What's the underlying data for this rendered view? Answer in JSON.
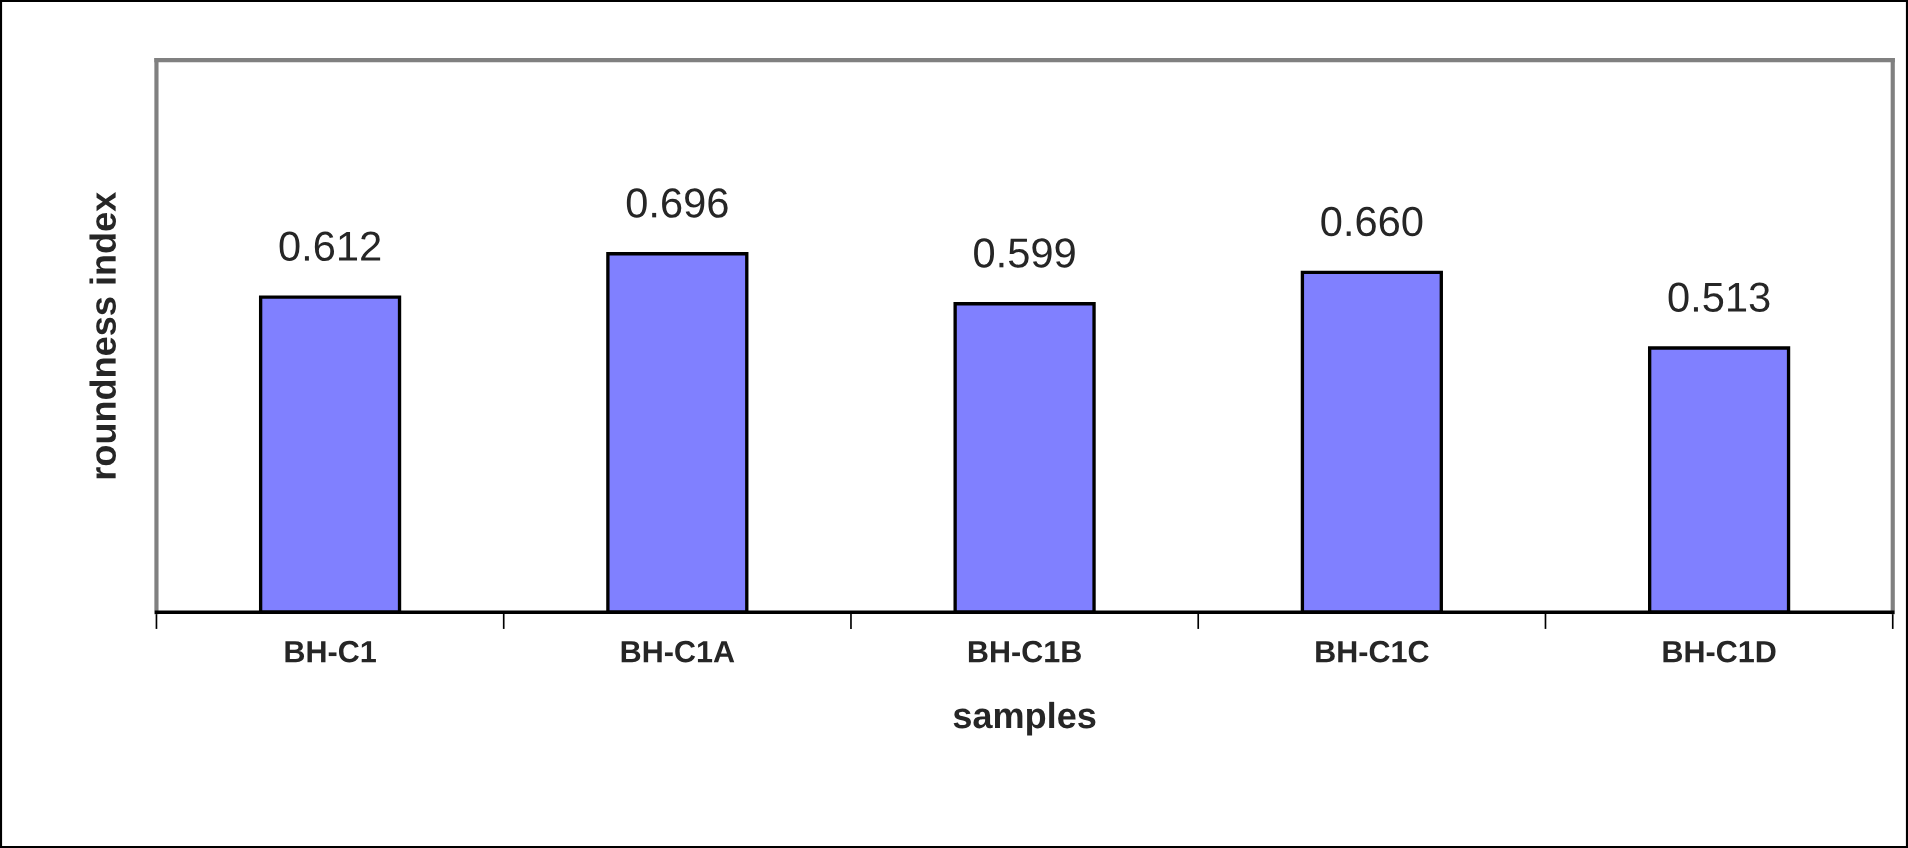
{
  "chart_data": {
    "type": "bar",
    "xlabel": "samples",
    "ylabel": "roundness index",
    "categories": [
      "BH-C1",
      "BH-C1A",
      "BH-C1B",
      "BH-C1C",
      "BH-C1D"
    ],
    "values": [
      0.612,
      0.696,
      0.599,
      0.66,
      0.513
    ],
    "value_labels": [
      "0.612",
      "0.696",
      "0.599",
      "0.660",
      "0.513"
    ],
    "color": "#8080ff",
    "tick_labels": "x",
    "grid": false,
    "legend": false
  }
}
